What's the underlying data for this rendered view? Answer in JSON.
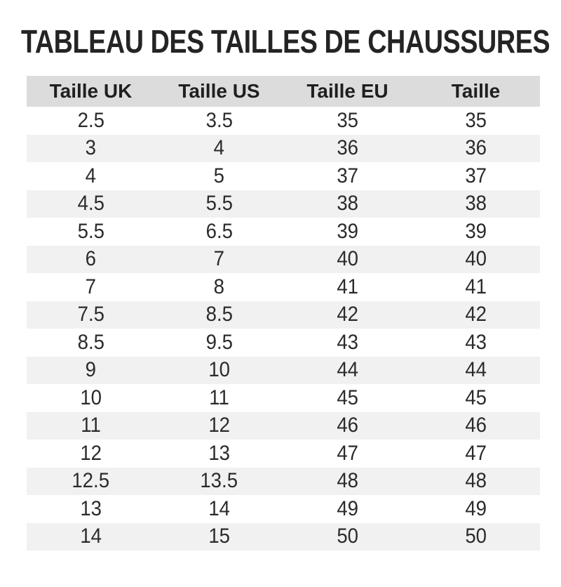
{
  "page": {
    "title": "TABLEAU DES TAILLES DE CHAUSSURES"
  },
  "chart_data": {
    "type": "table",
    "title": "TABLEAU DES TAILLES DE CHAUSSURES",
    "columns": [
      "Taille UK",
      "Taille US",
      "Taille EU",
      "Taille"
    ],
    "rows": [
      [
        "2.5",
        "3.5",
        "35",
        "35"
      ],
      [
        "3",
        "4",
        "36",
        "36"
      ],
      [
        "4",
        "5",
        "37",
        "37"
      ],
      [
        "4.5",
        "5.5",
        "38",
        "38"
      ],
      [
        "5.5",
        "6.5",
        "39",
        "39"
      ],
      [
        "6",
        "7",
        "40",
        "40"
      ],
      [
        "7",
        "8",
        "41",
        "41"
      ],
      [
        "7.5",
        "8.5",
        "42",
        "42"
      ],
      [
        "8.5",
        "9.5",
        "43",
        "43"
      ],
      [
        "9",
        "10",
        "44",
        "44"
      ],
      [
        "10",
        "11",
        "45",
        "45"
      ],
      [
        "11",
        "12",
        "46",
        "46"
      ],
      [
        "12",
        "13",
        "47",
        "47"
      ],
      [
        "12.5",
        "13.5",
        "48",
        "48"
      ],
      [
        "13",
        "14",
        "49",
        "49"
      ],
      [
        "14",
        "15",
        "50",
        "50"
      ]
    ],
    "layout": {
      "striped": true,
      "header_bg": "#dcdcdc",
      "alt_row_bg": "#f1f1f1",
      "text_color": "#262626",
      "grid": false
    }
  }
}
